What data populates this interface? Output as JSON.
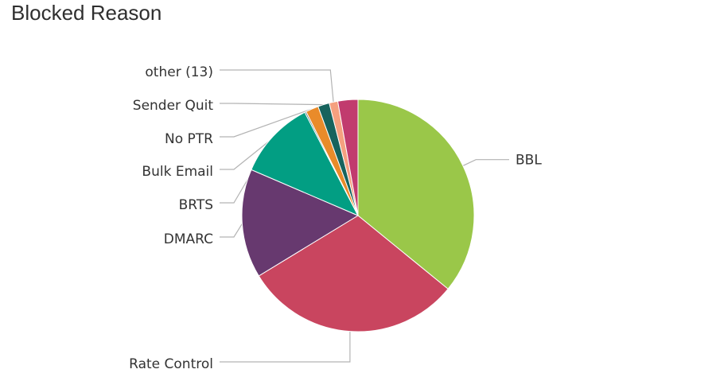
{
  "chart_data": {
    "type": "pie",
    "title": "Blocked Reason",
    "slices": [
      {
        "label": "BBL",
        "value": 36.0,
        "color": "#9ac749"
      },
      {
        "label": "Rate Control",
        "value": 30.5,
        "color": "#c9455f"
      },
      {
        "label": "DMARC",
        "value": 15.2,
        "color": "#67396f"
      },
      {
        "label": "BRTS",
        "value": 11.0,
        "color": "#029e83"
      },
      {
        "label": "Bulk Email",
        "value": 0.2,
        "color": "#3c6e7a"
      },
      {
        "label": "No PTR",
        "value": 1.8,
        "color": "#e98b2a"
      },
      {
        "label": "Sender Quit",
        "value": 1.6,
        "color": "#17635d"
      },
      {
        "label": "other (13)",
        "value": 1.2,
        "color": "#f5a07f"
      },
      {
        "label": "",
        "value": 2.8,
        "color": "#c13b6e"
      }
    ]
  }
}
